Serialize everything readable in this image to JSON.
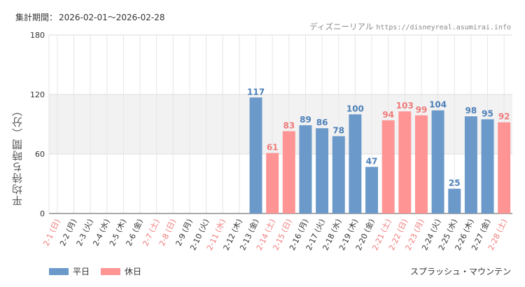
{
  "period": {
    "label": "集計期間：",
    "value": "2026-02-01～2026-02-28"
  },
  "source": {
    "site": "ディズニーリアル",
    "url": "https://disneyreal.asumirai.info"
  },
  "attraction": "スプラッシュ・マウンテン",
  "colors": {
    "weekday": "#6b99c9",
    "holiday": "#ff9494",
    "weekday_text": "#4d80b8",
    "holiday_text": "#f07a7a"
  },
  "chart_data": {
    "type": "bar",
    "ylabel": "平均待ち時間（分）",
    "ylim": [
      0,
      180
    ],
    "yticks": [
      0,
      60,
      120,
      180
    ],
    "highlight_band": [
      60,
      120
    ],
    "categories": [
      "2-1 (日)",
      "2-2 (月)",
      "2-3 (火)",
      "2-4 (水)",
      "2-5 (木)",
      "2-6 (金)",
      "2-7 (土)",
      "2-8 (日)",
      "2-9 (月)",
      "2-10 (火)",
      "2-11 (水)",
      "2-12 (木)",
      "2-13 (金)",
      "2-14 (土)",
      "2-15 (日)",
      "2-16 (月)",
      "2-17 (火)",
      "2-18 (水)",
      "2-19 (木)",
      "2-20 (金)",
      "2-21 (土)",
      "2-22 (日)",
      "2-23 (月)",
      "2-24 (火)",
      "2-25 (水)",
      "2-26 (木)",
      "2-27 (金)",
      "2-28 (土)"
    ],
    "day_type": [
      "休日",
      "平日",
      "平日",
      "平日",
      "平日",
      "平日",
      "休日",
      "休日",
      "平日",
      "平日",
      "休日",
      "平日",
      "平日",
      "休日",
      "休日",
      "平日",
      "平日",
      "平日",
      "平日",
      "平日",
      "休日",
      "休日",
      "休日",
      "平日",
      "平日",
      "平日",
      "平日",
      "休日"
    ],
    "values": [
      null,
      null,
      null,
      null,
      null,
      null,
      null,
      null,
      null,
      null,
      null,
      null,
      117,
      61,
      83,
      89,
      86,
      78,
      100,
      47,
      94,
      103,
      99,
      104,
      25,
      98,
      95,
      92
    ],
    "series": [
      {
        "name": "平日"
      },
      {
        "name": "休日"
      }
    ],
    "legend": "bottom-left"
  }
}
